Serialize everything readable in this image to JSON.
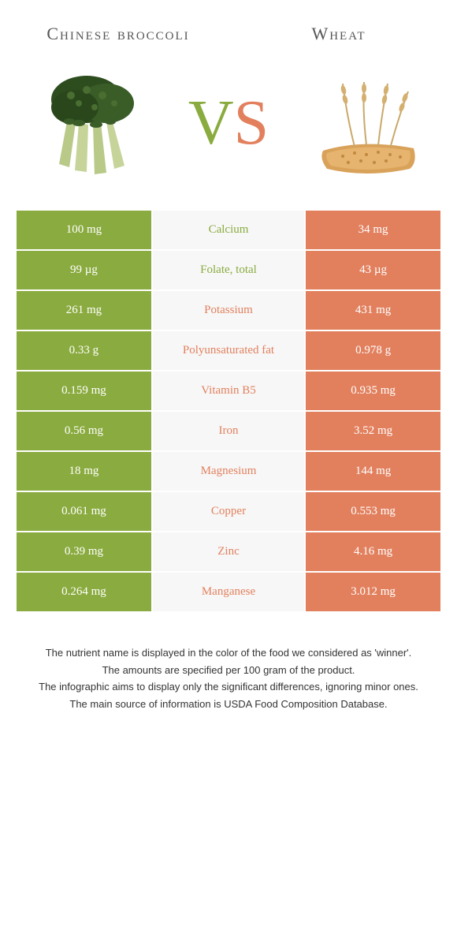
{
  "colors": {
    "left": "#8aab3f",
    "right": "#e2805e",
    "mid_bg": "#f7f7f7",
    "text": "#333333"
  },
  "titles": {
    "left": "Chinese broccoli",
    "right": "Wheat"
  },
  "vs": {
    "v": "V",
    "s": "S"
  },
  "rows": [
    {
      "left": "100 mg",
      "mid": "Calcium",
      "right": "34 mg",
      "winner": "left"
    },
    {
      "left": "99 µg",
      "mid": "Folate, total",
      "right": "43 µg",
      "winner": "left"
    },
    {
      "left": "261 mg",
      "mid": "Potassium",
      "right": "431 mg",
      "winner": "right"
    },
    {
      "left": "0.33 g",
      "mid": "Polyunsaturated fat",
      "right": "0.978 g",
      "winner": "right"
    },
    {
      "left": "0.159 mg",
      "mid": "Vitamin B5",
      "right": "0.935 mg",
      "winner": "right"
    },
    {
      "left": "0.56 mg",
      "mid": "Iron",
      "right": "3.52 mg",
      "winner": "right"
    },
    {
      "left": "18 mg",
      "mid": "Magnesium",
      "right": "144 mg",
      "winner": "right"
    },
    {
      "left": "0.061 mg",
      "mid": "Copper",
      "right": "0.553 mg",
      "winner": "right"
    },
    {
      "left": "0.39 mg",
      "mid": "Zinc",
      "right": "4.16 mg",
      "winner": "right"
    },
    {
      "left": "0.264 mg",
      "mid": "Manganese",
      "right": "3.012 mg",
      "winner": "right"
    }
  ],
  "footer": {
    "l1": "The nutrient name is displayed in the color of the food we considered as 'winner'.",
    "l2": "The amounts are specified per 100 gram of the product.",
    "l3": "The infographic aims to display only the significant differences, ignoring minor ones.",
    "l4": "The main source of information is USDA Food Composition Database."
  }
}
